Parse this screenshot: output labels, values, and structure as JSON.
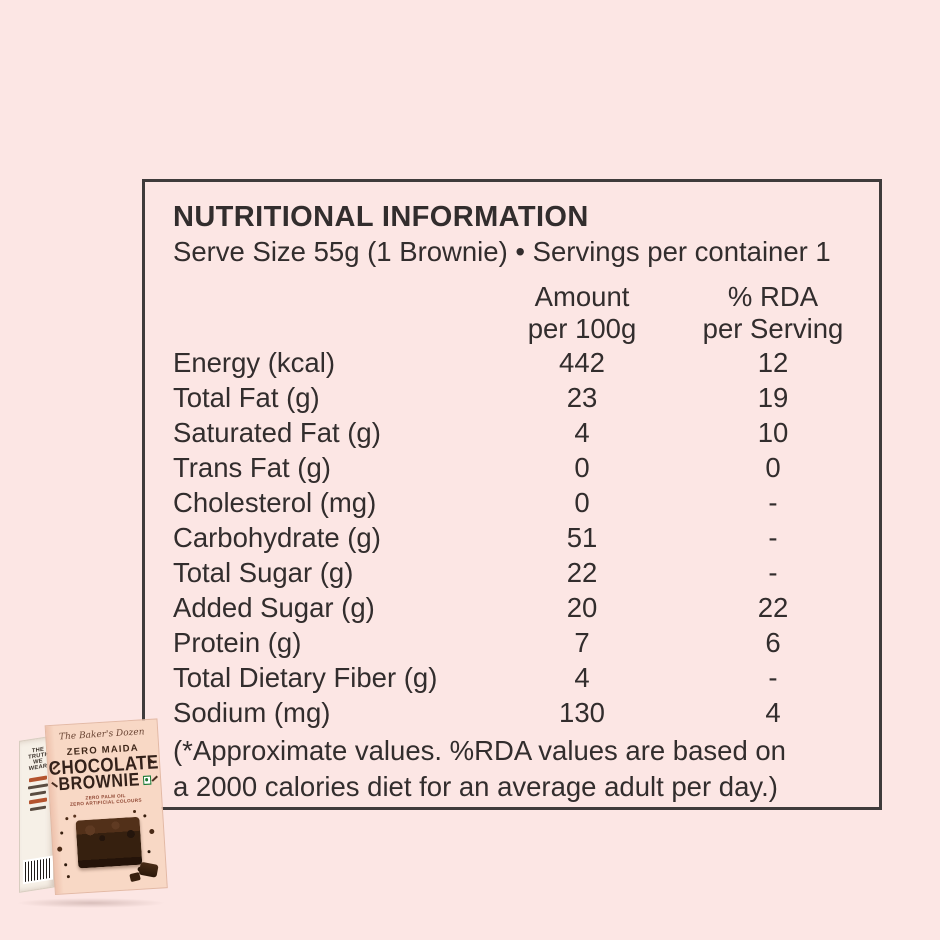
{
  "page": {
    "background_color": "#fce6e4",
    "panel_border_color": "#3f3b3b",
    "text_color": "#322d2d"
  },
  "label": {
    "title": "NUTRITIONAL INFORMATION",
    "subtitle": "Serve Size 55g (1 Brownie) • Servings per container 1",
    "columns": {
      "amount_line1": "Amount",
      "amount_line2": "per 100g",
      "rda_line1": "% RDA",
      "rda_line2": "per Serving"
    },
    "rows": [
      {
        "name": "Energy (kcal)",
        "amount": "442",
        "rda": "12"
      },
      {
        "name": "Total Fat (g)",
        "amount": "23",
        "rda": "19"
      },
      {
        "name": "Saturated Fat (g)",
        "amount": "4",
        "rda": "10"
      },
      {
        "name": "Trans Fat (g)",
        "amount": "0",
        "rda": "0"
      },
      {
        "name": "Cholesterol (mg)",
        "amount": "0",
        "rda": "-"
      },
      {
        "name": "Carbohydrate (g)",
        "amount": "51",
        "rda": "-"
      },
      {
        "name": "Total Sugar (g)",
        "amount": "22",
        "rda": "-"
      },
      {
        "name": "Added Sugar (g)",
        "amount": "20",
        "rda": "22"
      },
      {
        "name": "Protein (g)",
        "amount": "7",
        "rda": "6"
      },
      {
        "name": "Total Dietary Fiber (g)",
        "amount": "4",
        "rda": "-"
      },
      {
        "name": "Sodium (mg)",
        "amount": "130",
        "rda": "4"
      }
    ],
    "footnote_line1": "(*Approximate values. %RDA values are based on",
    "footnote_line2": "a 2000 calories diet for an average adult per day.)"
  },
  "product_box": {
    "brand": "The Baker's Dozen",
    "tagline": "ZERO MAIDA",
    "name_line1": "CHOCOLATE",
    "name_line2": "BROWNIE",
    "subtext_line1": "ZERO PALM OIL",
    "subtext_line2": "ZERO ARTIFICIAL COLOURS",
    "spine_text": "THE TRUTH WE WEAR",
    "front_color": "#f8d8c5",
    "veg_mark_color": "#1d7a34"
  }
}
